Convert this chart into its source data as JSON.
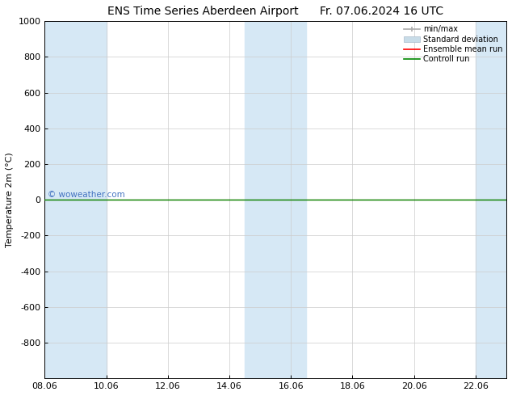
{
  "title_left": "ENS Time Series Aberdeen Airport",
  "title_right": "Fr. 07.06.2024 16 UTC",
  "ylabel": "Temperature 2m (°C)",
  "xlim_labels": [
    "08.06",
    "10.06",
    "12.06",
    "14.06",
    "16.06",
    "18.06",
    "20.06",
    "22.06"
  ],
  "xlim": [
    8,
    23
  ],
  "ylim": [
    -1000,
    1000
  ],
  "yticks": [
    -800,
    -600,
    -400,
    -200,
    0,
    200,
    400,
    600,
    800,
    1000
  ],
  "background_color": "#ffffff",
  "plot_bg_color": "#ffffff",
  "shaded_band_color": "#d6e8f5",
  "shaded_bands": [
    [
      8.0,
      9.0
    ],
    [
      9.0,
      10.0
    ],
    [
      14.5,
      15.5
    ],
    [
      15.5,
      16.5
    ],
    [
      22.0,
      23.0
    ]
  ],
  "watermark": "© woweather.com",
  "watermark_color": "#3366bb",
  "control_run_y": 0,
  "ensemble_mean_y": 0,
  "legend_entries": [
    "min/max",
    "Standard deviation",
    "Ensemble mean run",
    "Controll run"
  ],
  "legend_colors": [
    "#aaaaaa",
    "#c8dce8",
    "#ff0000",
    "#008800"
  ],
  "title_fontsize": 10,
  "axis_fontsize": 8,
  "tick_fontsize": 8
}
